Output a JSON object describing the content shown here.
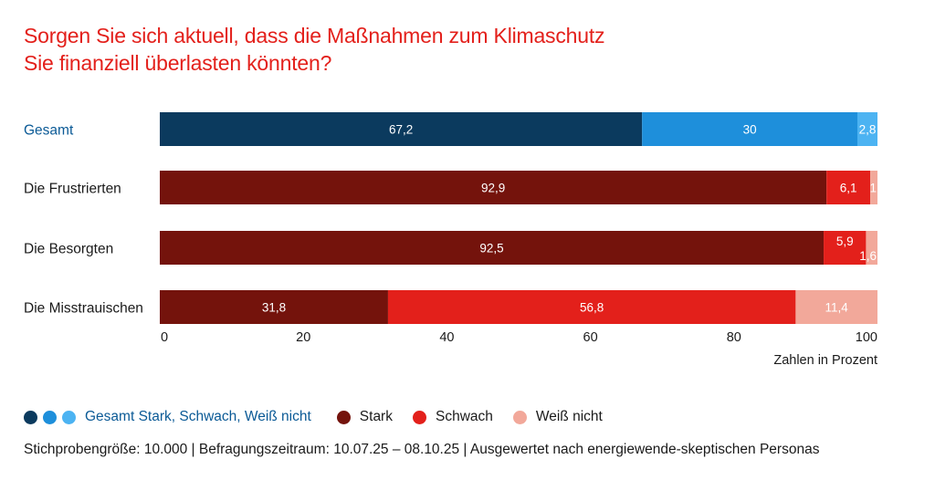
{
  "title": {
    "line1": "Sorgen Sie sich aktuell, dass die Maßnahmen zum Klimaschutz",
    "line2": "Sie finanziell überlasten könnten?"
  },
  "colors": {
    "title": "#e3201b",
    "gesamt_stark": "#0b3a5e",
    "gesamt_schwach": "#1e8fdb",
    "gesamt_weiss_nicht": "#4cb3f2",
    "stark": "#74130c",
    "schwach": "#e3201b",
    "weiss_nicht": "#f2a89a",
    "gesamt_label": "#0b5a96"
  },
  "chart_data": {
    "type": "bar",
    "orientation": "horizontal",
    "stacked": true,
    "categories": [
      "Gesamt",
      "Die Frustrierten",
      "Die Besorgten",
      "Die Misstrauischen"
    ],
    "series": [
      {
        "name": "Stark",
        "values": [
          67.2,
          92.9,
          92.5,
          31.8
        ],
        "labels": [
          "67,2",
          "92,9",
          "92,5",
          "31,8"
        ]
      },
      {
        "name": "Schwach",
        "values": [
          30,
          6.1,
          5.9,
          56.8
        ],
        "labels": [
          "30",
          "6,1",
          "5,9",
          "56,8"
        ]
      },
      {
        "name": "Weiß nicht",
        "values": [
          2.8,
          1,
          1.6,
          11.4
        ],
        "labels": [
          "2,8",
          "1",
          "1,6",
          "11,4"
        ]
      }
    ],
    "xlim": [
      0,
      100
    ],
    "xticks": [
      0,
      20,
      40,
      60,
      80,
      100
    ],
    "xlabel": "Zahlen in Prozent",
    "grid": false
  },
  "legend": {
    "gesamt_label": "Gesamt Stark, Schwach, Weiß nicht",
    "stark": "Stark",
    "schwach": "Schwach",
    "weiss_nicht": "Weiß nicht"
  },
  "footnote": "Stichprobengröße: 10.000 | Befragungszeitraum: 10.07.25 – 08.10.25 | Ausgewertet nach energiewende-skeptischen Personas"
}
